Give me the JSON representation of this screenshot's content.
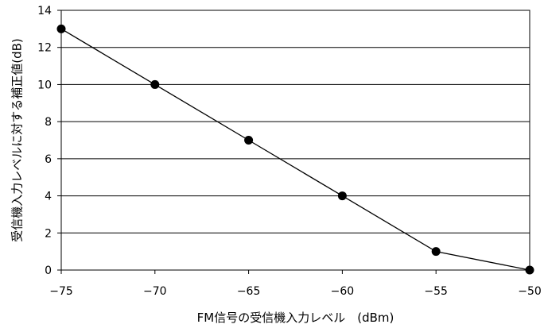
{
  "chart_data": {
    "type": "line",
    "title": "",
    "xlabel": "FM信号の受信機入力レベル　(dBm)",
    "ylabel": "受信機入力レベルに対する補正値(dB)",
    "x": [
      -75,
      -70,
      -65,
      -60,
      -55,
      -50
    ],
    "series": [
      {
        "values": [
          13,
          10,
          7,
          4,
          1,
          0
        ]
      }
    ],
    "xlim": [
      -75,
      -50
    ],
    "ylim": [
      0,
      14
    ],
    "xticks": [
      -75,
      -70,
      -65,
      -60,
      -55,
      -50
    ],
    "yticks": [
      0,
      2,
      4,
      6,
      8,
      10,
      12,
      14
    ],
    "xtick_labels": [
      "−75",
      "−70",
      "−65",
      "−60",
      "−55",
      "−50"
    ],
    "ytick_labels": [
      "0",
      "2",
      "4",
      "6",
      "8",
      "10",
      "12",
      "14"
    ],
    "grid": {
      "horizontal": true,
      "vertical": false
    },
    "colors": {
      "line": "#000000",
      "marker": "#000000",
      "grid": "#000000",
      "background": "#ffffff"
    },
    "marker": "filled-circle"
  }
}
